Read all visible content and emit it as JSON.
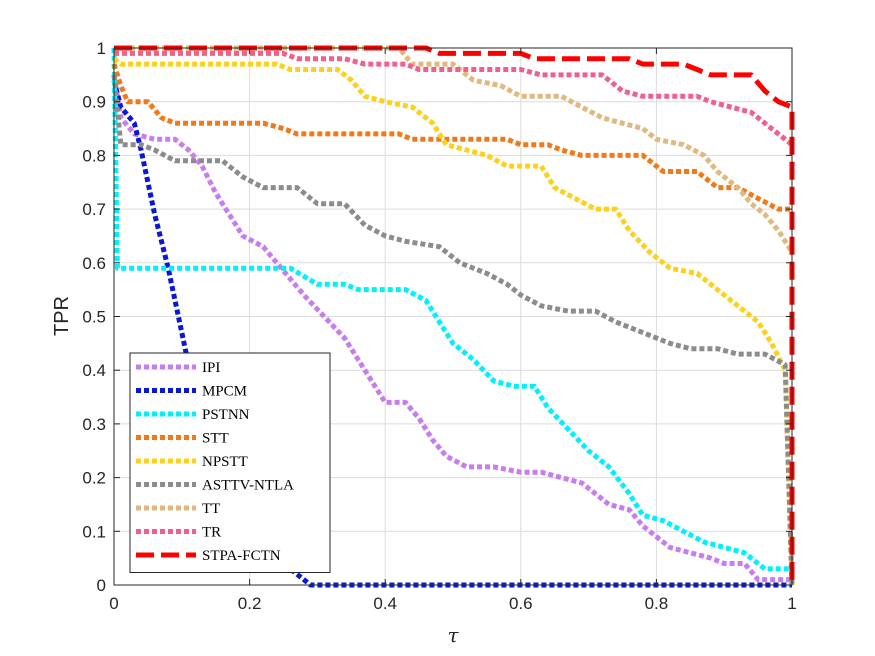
{
  "chart_data": {
    "type": "line",
    "title": "",
    "xlabel": "τ",
    "ylabel": "TPR",
    "xlim": [
      0,
      1
    ],
    "ylim": [
      0,
      1
    ],
    "xticks": [
      "0",
      "0.2",
      "0.4",
      "0.6",
      "0.8",
      "1"
    ],
    "yticks": [
      "0",
      "0.1",
      "0.2",
      "0.3",
      "0.4",
      "0.5",
      "0.6",
      "0.7",
      "0.8",
      "0.9",
      "1"
    ],
    "grid": true,
    "legend_position": "bottom-left",
    "series": [
      {
        "name": "IPI",
        "color": "#c77cf0",
        "dash": "dotted",
        "points": [
          [
            0,
            0.95
          ],
          [
            0.01,
            0.87
          ],
          [
            0.03,
            0.84
          ],
          [
            0.06,
            0.83
          ],
          [
            0.09,
            0.83
          ],
          [
            0.11,
            0.81
          ],
          [
            0.13,
            0.78
          ],
          [
            0.15,
            0.73
          ],
          [
            0.17,
            0.69
          ],
          [
            0.19,
            0.65
          ],
          [
            0.22,
            0.63
          ],
          [
            0.24,
            0.6
          ],
          [
            0.26,
            0.57
          ],
          [
            0.28,
            0.54
          ],
          [
            0.31,
            0.5
          ],
          [
            0.34,
            0.46
          ],
          [
            0.36,
            0.42
          ],
          [
            0.38,
            0.38
          ],
          [
            0.4,
            0.34
          ],
          [
            0.43,
            0.34
          ],
          [
            0.45,
            0.31
          ],
          [
            0.47,
            0.27
          ],
          [
            0.49,
            0.24
          ],
          [
            0.52,
            0.22
          ],
          [
            0.56,
            0.22
          ],
          [
            0.6,
            0.21
          ],
          [
            0.63,
            0.21
          ],
          [
            0.66,
            0.2
          ],
          [
            0.69,
            0.19
          ],
          [
            0.71,
            0.17
          ],
          [
            0.73,
            0.15
          ],
          [
            0.76,
            0.14
          ],
          [
            0.78,
            0.11
          ],
          [
            0.8,
            0.09
          ],
          [
            0.82,
            0.07
          ],
          [
            0.85,
            0.06
          ],
          [
            0.88,
            0.05
          ],
          [
            0.9,
            0.04
          ],
          [
            0.93,
            0.04
          ],
          [
            0.95,
            0.01
          ],
          [
            1.0,
            0.01
          ]
        ]
      },
      {
        "name": "MPCM",
        "color": "#0a18d4",
        "dash": "dotted",
        "points": [
          [
            0,
            0.94
          ],
          [
            0.01,
            0.89
          ],
          [
            0.03,
            0.86
          ],
          [
            0.04,
            0.81
          ],
          [
            0.05,
            0.75
          ],
          [
            0.06,
            0.69
          ],
          [
            0.07,
            0.64
          ],
          [
            0.08,
            0.59
          ],
          [
            0.09,
            0.53
          ],
          [
            0.1,
            0.47
          ],
          [
            0.11,
            0.41
          ],
          [
            0.12,
            0.35
          ],
          [
            0.13,
            0.29
          ],
          [
            0.14,
            0.24
          ],
          [
            0.15,
            0.19
          ],
          [
            0.17,
            0.14
          ],
          [
            0.18,
            0.11
          ],
          [
            0.2,
            0.08
          ],
          [
            0.22,
            0.06
          ],
          [
            0.25,
            0.04
          ],
          [
            0.27,
            0.02
          ],
          [
            0.29,
            0.0
          ],
          [
            1.0,
            0.0
          ]
        ]
      },
      {
        "name": "PSTNN",
        "color": "#00f0ff",
        "dash": "dotted",
        "points": [
          [
            0,
            1.0
          ],
          [
            0.005,
            0.59
          ],
          [
            0.26,
            0.59
          ],
          [
            0.3,
            0.56
          ],
          [
            0.34,
            0.56
          ],
          [
            0.36,
            0.55
          ],
          [
            0.43,
            0.55
          ],
          [
            0.46,
            0.53
          ],
          [
            0.48,
            0.49
          ],
          [
            0.5,
            0.45
          ],
          [
            0.53,
            0.42
          ],
          [
            0.56,
            0.38
          ],
          [
            0.59,
            0.37
          ],
          [
            0.62,
            0.37
          ],
          [
            0.64,
            0.33
          ],
          [
            0.67,
            0.29
          ],
          [
            0.7,
            0.25
          ],
          [
            0.73,
            0.22
          ],
          [
            0.76,
            0.17
          ],
          [
            0.78,
            0.13
          ],
          [
            0.81,
            0.12
          ],
          [
            0.84,
            0.1
          ],
          [
            0.87,
            0.08
          ],
          [
            0.9,
            0.07
          ],
          [
            0.93,
            0.06
          ],
          [
            0.96,
            0.03
          ],
          [
            1.0,
            0.03
          ]
        ]
      },
      {
        "name": "STT",
        "color": "#f07a1a",
        "dash": "dotted",
        "points": [
          [
            0,
            0.97
          ],
          [
            0.01,
            0.93
          ],
          [
            0.02,
            0.9
          ],
          [
            0.05,
            0.9
          ],
          [
            0.07,
            0.87
          ],
          [
            0.09,
            0.86
          ],
          [
            0.22,
            0.86
          ],
          [
            0.25,
            0.85
          ],
          [
            0.27,
            0.84
          ],
          [
            0.42,
            0.84
          ],
          [
            0.44,
            0.83
          ],
          [
            0.58,
            0.83
          ],
          [
            0.6,
            0.82
          ],
          [
            0.64,
            0.82
          ],
          [
            0.66,
            0.81
          ],
          [
            0.69,
            0.8
          ],
          [
            0.78,
            0.8
          ],
          [
            0.81,
            0.77
          ],
          [
            0.86,
            0.77
          ],
          [
            0.89,
            0.74
          ],
          [
            0.92,
            0.74
          ],
          [
            0.95,
            0.72
          ],
          [
            0.98,
            0.7
          ],
          [
            1.0,
            0.7
          ]
        ]
      },
      {
        "name": "NPSTT",
        "color": "#ffd01a",
        "dash": "dotted",
        "points": [
          [
            0,
            0.98
          ],
          [
            0.01,
            0.97
          ],
          [
            0.24,
            0.97
          ],
          [
            0.26,
            0.96
          ],
          [
            0.33,
            0.96
          ],
          [
            0.35,
            0.94
          ],
          [
            0.37,
            0.91
          ],
          [
            0.4,
            0.9
          ],
          [
            0.44,
            0.89
          ],
          [
            0.47,
            0.86
          ],
          [
            0.49,
            0.82
          ],
          [
            0.52,
            0.81
          ],
          [
            0.55,
            0.8
          ],
          [
            0.58,
            0.78
          ],
          [
            0.63,
            0.78
          ],
          [
            0.65,
            0.74
          ],
          [
            0.68,
            0.72
          ],
          [
            0.71,
            0.7
          ],
          [
            0.74,
            0.7
          ],
          [
            0.76,
            0.66
          ],
          [
            0.79,
            0.62
          ],
          [
            0.82,
            0.59
          ],
          [
            0.86,
            0.58
          ],
          [
            0.89,
            0.55
          ],
          [
            0.92,
            0.52
          ],
          [
            0.95,
            0.49
          ],
          [
            0.97,
            0.45
          ],
          [
            0.99,
            0.4
          ],
          [
            1.0,
            0.0
          ]
        ]
      },
      {
        "name": "ASTTV-NTLA",
        "color": "#8c8c8c",
        "dash": "dotted",
        "points": [
          [
            0,
            0.95
          ],
          [
            0.01,
            0.82
          ],
          [
            0.04,
            0.82
          ],
          [
            0.06,
            0.81
          ],
          [
            0.09,
            0.79
          ],
          [
            0.16,
            0.79
          ],
          [
            0.19,
            0.76
          ],
          [
            0.22,
            0.74
          ],
          [
            0.27,
            0.74
          ],
          [
            0.3,
            0.71
          ],
          [
            0.34,
            0.71
          ],
          [
            0.37,
            0.67
          ],
          [
            0.4,
            0.65
          ],
          [
            0.43,
            0.64
          ],
          [
            0.48,
            0.63
          ],
          [
            0.51,
            0.6
          ],
          [
            0.55,
            0.58
          ],
          [
            0.58,
            0.56
          ],
          [
            0.6,
            0.54
          ],
          [
            0.63,
            0.52
          ],
          [
            0.67,
            0.51
          ],
          [
            0.71,
            0.51
          ],
          [
            0.74,
            0.49
          ],
          [
            0.78,
            0.47
          ],
          [
            0.82,
            0.45
          ],
          [
            0.85,
            0.44
          ],
          [
            0.89,
            0.44
          ],
          [
            0.92,
            0.43
          ],
          [
            0.96,
            0.43
          ],
          [
            0.99,
            0.41
          ],
          [
            1.0,
            0.0
          ]
        ]
      },
      {
        "name": "TT",
        "color": "#e0b880",
        "dash": "dotted",
        "points": [
          [
            0,
            1.0
          ],
          [
            0.42,
            1.0
          ],
          [
            0.44,
            0.97
          ],
          [
            0.5,
            0.97
          ],
          [
            0.53,
            0.94
          ],
          [
            0.57,
            0.93
          ],
          [
            0.6,
            0.91
          ],
          [
            0.66,
            0.91
          ],
          [
            0.69,
            0.89
          ],
          [
            0.72,
            0.87
          ],
          [
            0.75,
            0.86
          ],
          [
            0.78,
            0.85
          ],
          [
            0.8,
            0.83
          ],
          [
            0.84,
            0.82
          ],
          [
            0.87,
            0.8
          ],
          [
            0.89,
            0.77
          ],
          [
            0.92,
            0.74
          ],
          [
            0.94,
            0.71
          ],
          [
            0.96,
            0.69
          ],
          [
            0.98,
            0.66
          ],
          [
            1.0,
            0.62
          ]
        ]
      },
      {
        "name": "TR",
        "color": "#f0608c",
        "dash": "dotted",
        "points": [
          [
            0,
            0.99
          ],
          [
            0.25,
            0.99
          ],
          [
            0.27,
            0.98
          ],
          [
            0.34,
            0.98
          ],
          [
            0.37,
            0.97
          ],
          [
            0.43,
            0.97
          ],
          [
            0.45,
            0.96
          ],
          [
            0.6,
            0.96
          ],
          [
            0.63,
            0.95
          ],
          [
            0.72,
            0.95
          ],
          [
            0.75,
            0.92
          ],
          [
            0.78,
            0.91
          ],
          [
            0.86,
            0.91
          ],
          [
            0.88,
            0.9
          ],
          [
            0.91,
            0.89
          ],
          [
            0.94,
            0.88
          ],
          [
            0.96,
            0.86
          ],
          [
            0.98,
            0.84
          ],
          [
            1.0,
            0.82
          ]
        ]
      },
      {
        "name": "STPA-FCTN",
        "color": "#ff0000",
        "dash": "dashed",
        "points": [
          [
            0,
            1.0
          ],
          [
            0.46,
            1.0
          ],
          [
            0.48,
            0.99
          ],
          [
            0.6,
            0.99
          ],
          [
            0.62,
            0.98
          ],
          [
            0.76,
            0.98
          ],
          [
            0.78,
            0.97
          ],
          [
            0.84,
            0.97
          ],
          [
            0.86,
            0.96
          ],
          [
            0.88,
            0.95
          ],
          [
            0.94,
            0.95
          ],
          [
            0.96,
            0.92
          ],
          [
            0.98,
            0.9
          ],
          [
            1.0,
            0.89
          ],
          [
            1.0,
            0.0
          ]
        ]
      }
    ]
  }
}
